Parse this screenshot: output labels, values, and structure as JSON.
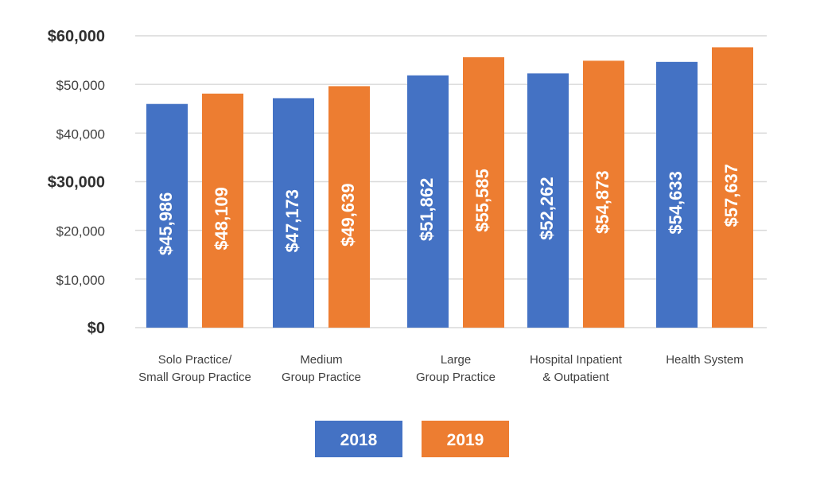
{
  "chart_data": {
    "type": "bar",
    "categories": [
      [
        "Solo Practice/",
        "Small Group Practice"
      ],
      [
        "Medium",
        "Group Practice"
      ],
      [
        "Large",
        "Group Practice"
      ],
      [
        "Hospital Inpatient",
        "& Outpatient"
      ],
      [
        "Health System"
      ]
    ],
    "series": [
      {
        "name": "2018",
        "color": "#4472C4",
        "values": [
          45986,
          47173,
          51862,
          52262,
          54633
        ],
        "labels": [
          "$45,986",
          "$47,173",
          "$51,862",
          "$52,262",
          "$54,633"
        ]
      },
      {
        "name": "2019",
        "color": "#ED7D31",
        "values": [
          48109,
          49639,
          55585,
          54873,
          57637
        ],
        "labels": [
          "$48,109",
          "$49,639",
          "$55,585",
          "$54,873",
          "$57,637"
        ]
      }
    ],
    "ylim": [
      0,
      60000
    ],
    "yticks": [
      {
        "value": 0,
        "label": "$0",
        "bold": true
      },
      {
        "value": 10000,
        "label": "$10,000",
        "bold": false
      },
      {
        "value": 20000,
        "label": "$20,000",
        "bold": false
      },
      {
        "value": 30000,
        "label": "$30,000",
        "bold": true
      },
      {
        "value": 40000,
        "label": "$40,000",
        "bold": false
      },
      {
        "value": 50000,
        "label": "$50,000",
        "bold": false
      },
      {
        "value": 60000,
        "label": "$60,000",
        "bold": true
      }
    ],
    "grid": true,
    "legend_position": "bottom-center",
    "data_labels": "inside-rotated"
  }
}
